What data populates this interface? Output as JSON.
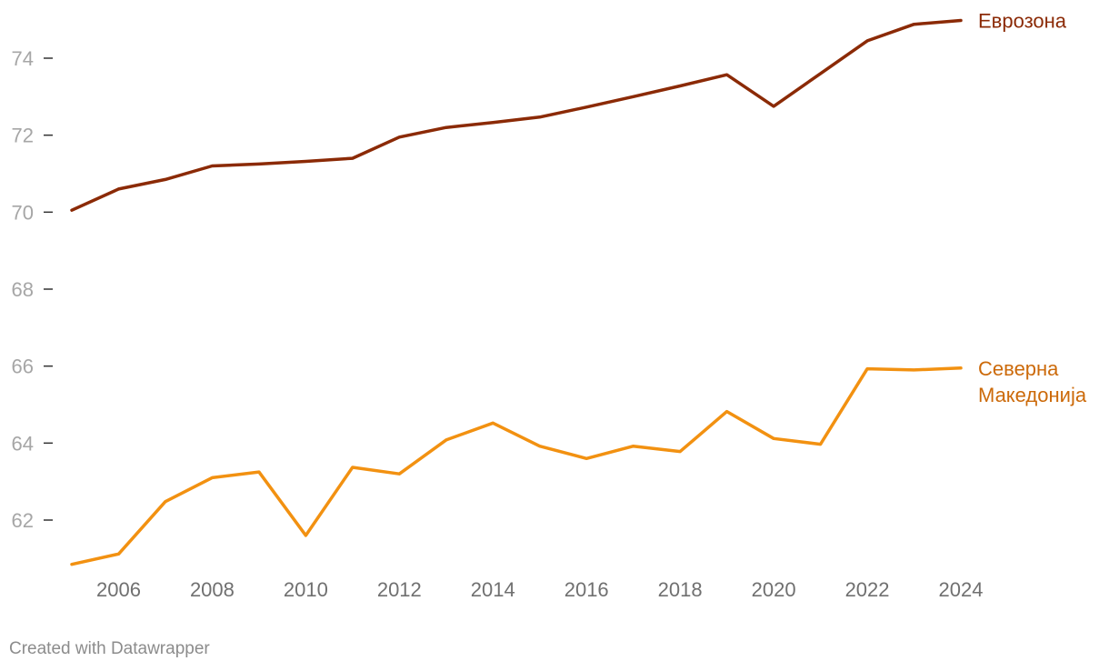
{
  "chart_data": {
    "type": "line",
    "title": "",
    "xlabel": "",
    "ylabel": "",
    "x": [
      2005,
      2006,
      2007,
      2008,
      2009,
      2010,
      2011,
      2012,
      2013,
      2014,
      2015,
      2016,
      2017,
      2018,
      2019,
      2020,
      2021,
      2022,
      2023,
      2024
    ],
    "x_ticks": [
      "2006",
      "2008",
      "2010",
      "2012",
      "2014",
      "2016",
      "2018",
      "2020",
      "2022",
      "2024"
    ],
    "y_ticks": [
      "62",
      "64",
      "66",
      "68",
      "70",
      "72",
      "74"
    ],
    "ylim": [
      60.8,
      75.2
    ],
    "grid": false,
    "series": [
      {
        "name": "Еврозона",
        "color": "#8b2a06",
        "values": [
          70.05,
          70.6,
          70.85,
          71.2,
          71.25,
          71.32,
          71.4,
          71.95,
          72.2,
          72.33,
          72.47,
          72.73,
          73.0,
          73.28,
          73.57,
          72.75,
          73.6,
          74.45,
          74.88,
          74.98
        ]
      },
      {
        "name": "Северна Македонија",
        "name_lines": [
          "Северна",
          "Македонија"
        ],
        "color": "#f29111",
        "label_color": "#cc6a0a",
        "values": [
          60.85,
          61.12,
          62.48,
          63.1,
          63.25,
          61.6,
          63.37,
          63.2,
          64.08,
          64.52,
          63.92,
          63.6,
          63.92,
          63.78,
          64.82,
          64.12,
          63.97,
          65.93,
          65.9,
          65.95
        ]
      }
    ]
  },
  "credit": "Created with Datawrapper"
}
